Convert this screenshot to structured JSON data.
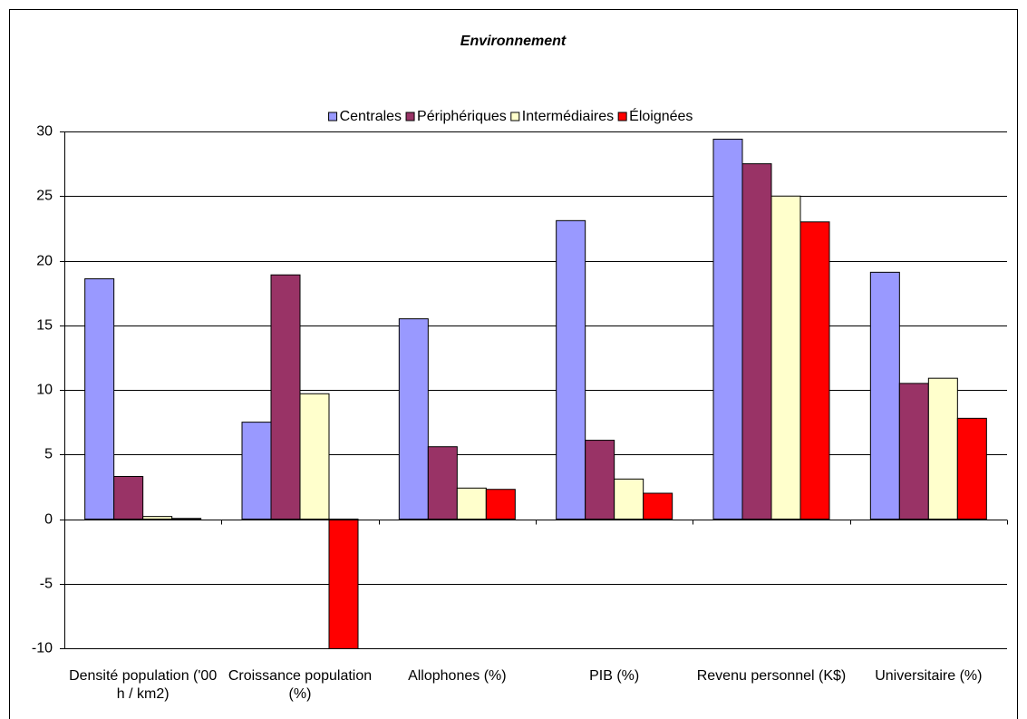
{
  "chart_data": {
    "type": "bar",
    "title": "Environnement",
    "categories": [
      "Densité population ('00 h / km2)",
      "Croissance population (%)",
      "Allophones (%)",
      "PIB (%)",
      "Revenu personnel (K$)",
      "Universitaire (%)"
    ],
    "series": [
      {
        "name": "Centrales",
        "color": "#9999ff",
        "values": [
          18.6,
          7.5,
          15.5,
          23.1,
          29.4,
          19.1
        ]
      },
      {
        "name": "Périphériques",
        "color": "#993366",
        "values": [
          3.3,
          18.9,
          5.6,
          6.1,
          27.5,
          10.5
        ]
      },
      {
        "name": "Intermédiaires",
        "color": "#ffffcc",
        "values": [
          0.2,
          9.7,
          2.4,
          3.1,
          25.0,
          10.9
        ]
      },
      {
        "name": "Éloignées",
        "color": "#ff0000",
        "values": [
          0.05,
          -10.2,
          2.3,
          2.0,
          23.0,
          7.8
        ]
      }
    ],
    "ylim": [
      -10,
      30
    ],
    "yticks": [
      -10,
      -5,
      0,
      5,
      10,
      15,
      20,
      25,
      30
    ],
    "grid": true,
    "legend": "top"
  }
}
